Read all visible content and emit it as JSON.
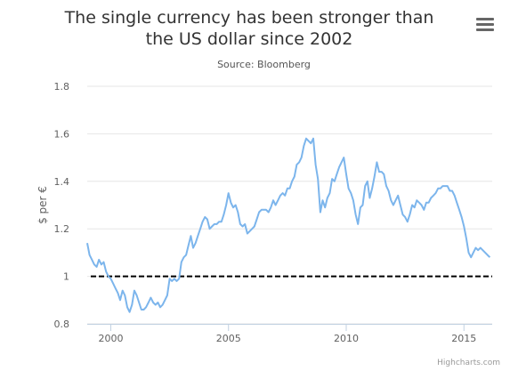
{
  "header": {
    "title": "The single currency has been stronger than the US dollar since 2002",
    "subtitle": "Source: Bloomberg",
    "menu_icon": "hamburger-menu-icon",
    "credits": "Highcharts.com"
  },
  "colors": {
    "series": "#7cb5ec",
    "reference_line": "#000000",
    "grid": "#e6e6e6"
  },
  "chart_data": {
    "type": "line",
    "title": "The single currency has been stronger than the US dollar since 2002",
    "subtitle": "Source: Bloomberg",
    "xlabel": "",
    "ylabel": "$ per €",
    "xlim": [
      1999,
      2016.2
    ],
    "ylim": [
      0.8,
      1.8
    ],
    "x_ticks": [
      2000,
      2005,
      2010,
      2015
    ],
    "y_ticks": [
      0.8,
      1,
      1.2,
      1.4,
      1.6,
      1.8
    ],
    "y_tick_labels": [
      "0.8",
      "1",
      "1.2",
      "1.4",
      "1.6",
      "1.8"
    ],
    "grid": true,
    "legend": "none",
    "reference_line": {
      "y": 1.0,
      "style": "dashed"
    },
    "series": [
      {
        "x": [
          1999.0,
          1999.1,
          1999.2,
          1999.3,
          1999.4,
          1999.5,
          1999.6,
          1999.7,
          1999.8,
          1999.9,
          2000.0,
          2000.1,
          2000.2,
          2000.3,
          2000.4,
          2000.5,
          2000.6,
          2000.7,
          2000.8,
          2000.9,
          2001.0,
          2001.1,
          2001.2,
          2001.3,
          2001.4,
          2001.5,
          2001.6,
          2001.7,
          2001.8,
          2001.9,
          2002.0,
          2002.1,
          2002.2,
          2002.3,
          2002.4,
          2002.5,
          2002.6,
          2002.7,
          2002.8,
          2002.9,
          2003.0,
          2003.1,
          2003.2,
          2003.3,
          2003.4,
          2003.5,
          2003.6,
          2003.7,
          2003.8,
          2003.9,
          2004.0,
          2004.1,
          2004.2,
          2004.3,
          2004.4,
          2004.5,
          2004.6,
          2004.7,
          2004.8,
          2004.9,
          2005.0,
          2005.1,
          2005.2,
          2005.3,
          2005.4,
          2005.5,
          2005.6,
          2005.7,
          2005.8,
          2005.9,
          2006.0,
          2006.1,
          2006.2,
          2006.3,
          2006.4,
          2006.5,
          2006.6,
          2006.7,
          2006.8,
          2006.9,
          2007.0,
          2007.1,
          2007.2,
          2007.3,
          2007.4,
          2007.5,
          2007.6,
          2007.7,
          2007.8,
          2007.9,
          2008.0,
          2008.1,
          2008.2,
          2008.3,
          2008.4,
          2008.5,
          2008.6,
          2008.7,
          2008.8,
          2008.9,
          2009.0,
          2009.1,
          2009.2,
          2009.3,
          2009.4,
          2009.5,
          2009.6,
          2009.7,
          2009.8,
          2009.9,
          2010.0,
          2010.1,
          2010.2,
          2010.3,
          2010.4,
          2010.5,
          2010.6,
          2010.7,
          2010.8,
          2010.9,
          2011.0,
          2011.1,
          2011.2,
          2011.3,
          2011.4,
          2011.5,
          2011.6,
          2011.7,
          2011.8,
          2011.9,
          2012.0,
          2012.1,
          2012.2,
          2012.3,
          2012.4,
          2012.5,
          2012.6,
          2012.7,
          2012.8,
          2012.9,
          2013.0,
          2013.1,
          2013.2,
          2013.3,
          2013.4,
          2013.5,
          2013.6,
          2013.7,
          2013.8,
          2013.9,
          2014.0,
          2014.1,
          2014.2,
          2014.3,
          2014.4,
          2014.5,
          2014.6,
          2014.7,
          2014.8,
          2014.9,
          2015.0,
          2015.1,
          2015.2,
          2015.3,
          2015.4,
          2015.5,
          2015.6,
          2015.7,
          2015.8,
          2015.9,
          2016.0,
          2016.1
        ],
        "values": [
          1.14,
          1.09,
          1.07,
          1.05,
          1.04,
          1.07,
          1.05,
          1.06,
          1.02,
          1.0,
          0.99,
          0.97,
          0.95,
          0.93,
          0.9,
          0.94,
          0.92,
          0.87,
          0.85,
          0.88,
          0.94,
          0.92,
          0.89,
          0.86,
          0.86,
          0.87,
          0.89,
          0.91,
          0.89,
          0.88,
          0.89,
          0.87,
          0.88,
          0.9,
          0.92,
          0.99,
          0.98,
          0.99,
          0.98,
          0.99,
          1.06,
          1.08,
          1.09,
          1.13,
          1.17,
          1.12,
          1.14,
          1.17,
          1.2,
          1.23,
          1.25,
          1.24,
          1.2,
          1.21,
          1.22,
          1.22,
          1.23,
          1.23,
          1.26,
          1.3,
          1.35,
          1.31,
          1.29,
          1.3,
          1.27,
          1.22,
          1.21,
          1.22,
          1.18,
          1.19,
          1.2,
          1.21,
          1.24,
          1.27,
          1.28,
          1.28,
          1.28,
          1.27,
          1.29,
          1.32,
          1.3,
          1.32,
          1.34,
          1.35,
          1.34,
          1.37,
          1.37,
          1.4,
          1.42,
          1.47,
          1.48,
          1.5,
          1.55,
          1.58,
          1.57,
          1.56,
          1.58,
          1.47,
          1.41,
          1.27,
          1.32,
          1.29,
          1.33,
          1.35,
          1.41,
          1.4,
          1.43,
          1.46,
          1.48,
          1.5,
          1.43,
          1.37,
          1.35,
          1.32,
          1.26,
          1.22,
          1.29,
          1.3,
          1.38,
          1.4,
          1.33,
          1.37,
          1.42,
          1.48,
          1.44,
          1.44,
          1.43,
          1.38,
          1.36,
          1.32,
          1.3,
          1.32,
          1.34,
          1.3,
          1.26,
          1.25,
          1.23,
          1.26,
          1.3,
          1.29,
          1.32,
          1.31,
          1.3,
          1.28,
          1.31,
          1.31,
          1.33,
          1.34,
          1.35,
          1.37,
          1.37,
          1.38,
          1.38,
          1.38,
          1.36,
          1.36,
          1.34,
          1.31,
          1.28,
          1.25,
          1.21,
          1.16,
          1.1,
          1.08,
          1.1,
          1.12,
          1.11,
          1.12,
          1.11,
          1.1,
          1.09,
          1.08
        ]
      }
    ]
  }
}
